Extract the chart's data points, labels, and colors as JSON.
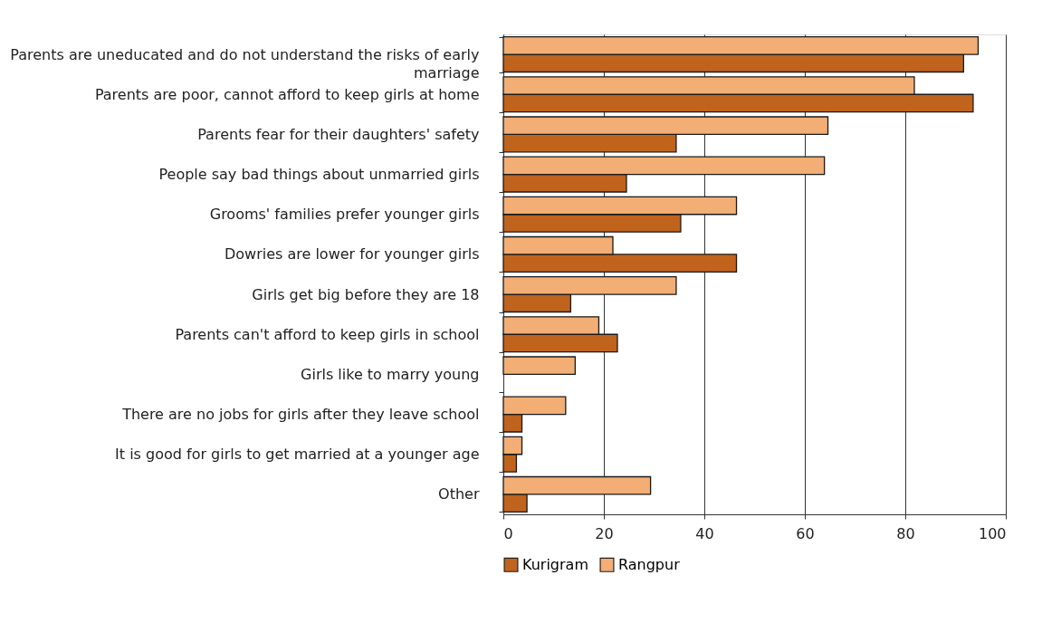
{
  "chart_data": {
    "type": "bar",
    "orientation": "horizontal",
    "categories": [
      "Parents are uneducated and do not understand the risks of early marriage",
      "Parents are poor, cannot afford to keep girls at home",
      "Parents fear for their daughters' safety",
      "People say bad things about unmarried girls",
      "Grooms' families prefer younger girls",
      "Dowries are lower for younger girls",
      "Girls get big before they are 18",
      "Parents can't afford to keep girls in school",
      "Girls like to marry young",
      "There are no jobs for girls after they leave school",
      "It is good for girls to get married at a younger age",
      "Other"
    ],
    "series": [
      {
        "name": "Kurigram",
        "color": "#c0631c",
        "values": [
          91.6,
          93.5,
          34.4,
          24.5,
          35.3,
          46.4,
          13.4,
          22.7,
          null,
          3.7,
          2.6,
          4.7
        ]
      },
      {
        "name": "Rangpur",
        "color": "#f2ae74",
        "values": [
          94.5,
          81.8,
          64.6,
          63.9,
          46.4,
          21.8,
          34.4,
          19.0,
          14.3,
          12.4,
          3.7,
          29.3
        ]
      }
    ],
    "xlim": [
      0,
      100
    ],
    "xticks": [
      0,
      20,
      40,
      60,
      80,
      100
    ],
    "grid": "x",
    "legend": "bottom"
  }
}
